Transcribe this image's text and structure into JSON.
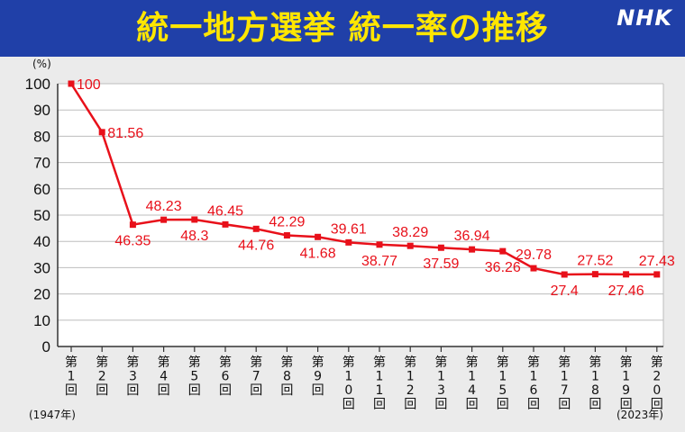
{
  "header": {
    "title": "統一地方選挙 統一率の推移",
    "logo": "NHK"
  },
  "colors": {
    "header_bg": "#2040a8",
    "title": "#ffe600",
    "line": "#e8101a",
    "background": "#ebebeb"
  },
  "chart_data": {
    "type": "line",
    "title": "統一地方選挙 統一率の推移",
    "ylabel": "(%)",
    "ylim": [
      0,
      100
    ],
    "yticks": [
      0,
      10,
      20,
      30,
      40,
      50,
      60,
      70,
      80,
      90,
      100
    ],
    "grid": true,
    "categories": [
      "第1回",
      "第2回",
      "第3回",
      "第4回",
      "第5回",
      "第6回",
      "第7回",
      "第8回",
      "第9回",
      "第10回",
      "第11回",
      "第12回",
      "第13回",
      "第14回",
      "第15回",
      "第16回",
      "第17回",
      "第18回",
      "第19回",
      "第20回"
    ],
    "values": [
      100,
      81.56,
      46.35,
      48.23,
      48.3,
      46.45,
      44.76,
      42.29,
      41.68,
      39.61,
      38.77,
      38.29,
      37.59,
      36.94,
      36.26,
      29.78,
      27.4,
      27.52,
      27.46,
      27.43
    ],
    "data_labels": [
      "100",
      "81.56",
      "46.35",
      "48.23",
      "48.3",
      "46.45",
      "44.76",
      "42.29",
      "41.68",
      "39.61",
      "38.77",
      "38.29",
      "37.59",
      "36.94",
      "36.26",
      "29.78",
      "27.4",
      "27.52",
      "27.46",
      "27.43"
    ],
    "label_positions": [
      "right",
      "right",
      "below",
      "above",
      "below",
      "above",
      "below",
      "above",
      "below",
      "above",
      "below",
      "above",
      "below",
      "above",
      "below",
      "above",
      "below",
      "above",
      "below",
      "above"
    ],
    "start_note": "(1947年)",
    "end_note": "(2023年)"
  }
}
